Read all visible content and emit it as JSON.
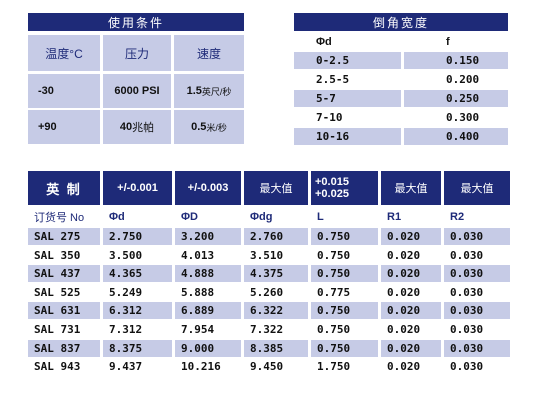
{
  "conditions": {
    "title": "使用条件",
    "headers": [
      "温度°C",
      "压力",
      "速度"
    ],
    "rows": [
      {
        "temp": "-30",
        "pressure": "6000 PSI",
        "speed_num": "1.5",
        "speed_unit": "英尺/秒"
      },
      {
        "temp": "+90",
        "pressure_num": "40",
        "pressure_unit": "兆帕",
        "speed_num": "0.5",
        "speed_unit": "米/秒"
      }
    ]
  },
  "chamfer": {
    "title": "倒角宽度",
    "headers": [
      "Φd",
      "f"
    ],
    "rows": [
      [
        "0-2.5",
        "0.150"
      ],
      [
        "2.5-5",
        "0.200"
      ],
      [
        "5-7",
        "0.250"
      ],
      [
        "7-10",
        "0.300"
      ],
      [
        "10-16",
        "0.400"
      ]
    ]
  },
  "main": {
    "headers": [
      "英    制",
      "+/-0.001",
      "+/-0.003",
      "最大值",
      "+0.015\n+0.025",
      "最大值",
      "最大值"
    ],
    "header_top": [
      "英    制",
      "+/-0.001",
      "+/-0.003",
      "最大值",
      "+0.015",
      "最大值",
      "最大值"
    ],
    "header_bottom": "+0.025",
    "sub": [
      "订货号 No",
      "Φd",
      "ΦD",
      "Φdg",
      "L",
      "R1",
      "R2"
    ],
    "rows": [
      [
        "SAL 275",
        "2.750",
        "3.200",
        "2.760",
        "0.750",
        "0.020",
        "0.030"
      ],
      [
        "SAL 350",
        "3.500",
        "4.013",
        "3.510",
        "0.750",
        "0.020",
        "0.030"
      ],
      [
        "SAL 437",
        "4.365",
        "4.888",
        "4.375",
        "0.750",
        "0.020",
        "0.030"
      ],
      [
        "SAL 525",
        "5.249",
        "5.888",
        "5.260",
        "0.775",
        "0.020",
        "0.030"
      ],
      [
        "SAL 631",
        "6.312",
        "6.889",
        "6.322",
        "0.750",
        "0.020",
        "0.030"
      ],
      [
        "SAL 731",
        "7.312",
        "7.954",
        "7.322",
        "0.750",
        "0.020",
        "0.030"
      ],
      [
        "SAL 837",
        "8.375",
        "9.000",
        "8.385",
        "0.750",
        "0.020",
        "0.030"
      ],
      [
        "SAL 943",
        "9.437",
        "10.216",
        "9.450",
        "1.750",
        "0.020",
        "0.030"
      ]
    ]
  },
  "colors": {
    "navy": "#1e2a78",
    "light_blue": "#c6cbe6"
  }
}
